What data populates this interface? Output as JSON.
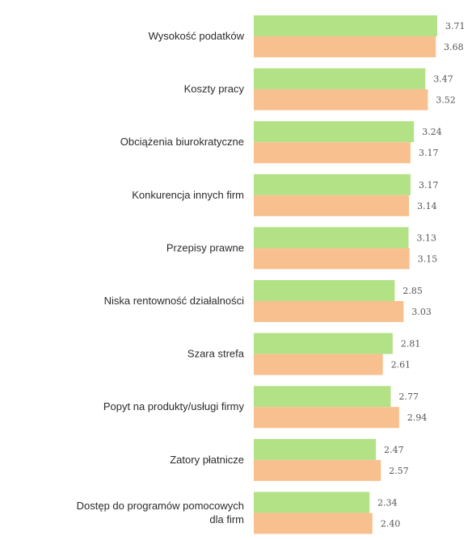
{
  "chart_data": {
    "type": "bar",
    "orientation": "horizontal",
    "categories": [
      [
        "Wysokość podatków"
      ],
      [
        "Koszty pracy"
      ],
      [
        "Obciążenia biurokratyczne"
      ],
      [
        "Konkurencja innych firm"
      ],
      [
        "Przepisy prawne"
      ],
      [
        "Niska rentowność działalności"
      ],
      [
        "Szara strefa"
      ],
      [
        "Popyt na produkty/usługi firmy"
      ],
      [
        "Zatory płatnicze"
      ],
      [
        "Dostęp do programów pomocowych",
        "dla firm"
      ]
    ],
    "series": [
      {
        "color": "#b3e186",
        "values": [
          3.71,
          3.47,
          3.24,
          3.17,
          3.13,
          2.85,
          2.81,
          2.77,
          2.47,
          2.34
        ],
        "labels": [
          "3.71",
          "3.47",
          "3.24",
          "3.17",
          "3.13",
          "2.85",
          "2.81",
          "2.77",
          "2.47",
          "2.34"
        ]
      },
      {
        "color": "#f9c08f",
        "values": [
          3.68,
          3.52,
          3.17,
          3.14,
          3.15,
          3.03,
          2.61,
          2.94,
          2.57,
          2.4
        ],
        "labels": [
          "3.68",
          "3.52",
          "3.17",
          "3.14",
          "3.15",
          "3.03",
          "2.61",
          "2.94",
          "2.57",
          "2.40"
        ]
      }
    ],
    "xlim": [
      0,
      3.71
    ],
    "grid": false,
    "legend": "none"
  }
}
